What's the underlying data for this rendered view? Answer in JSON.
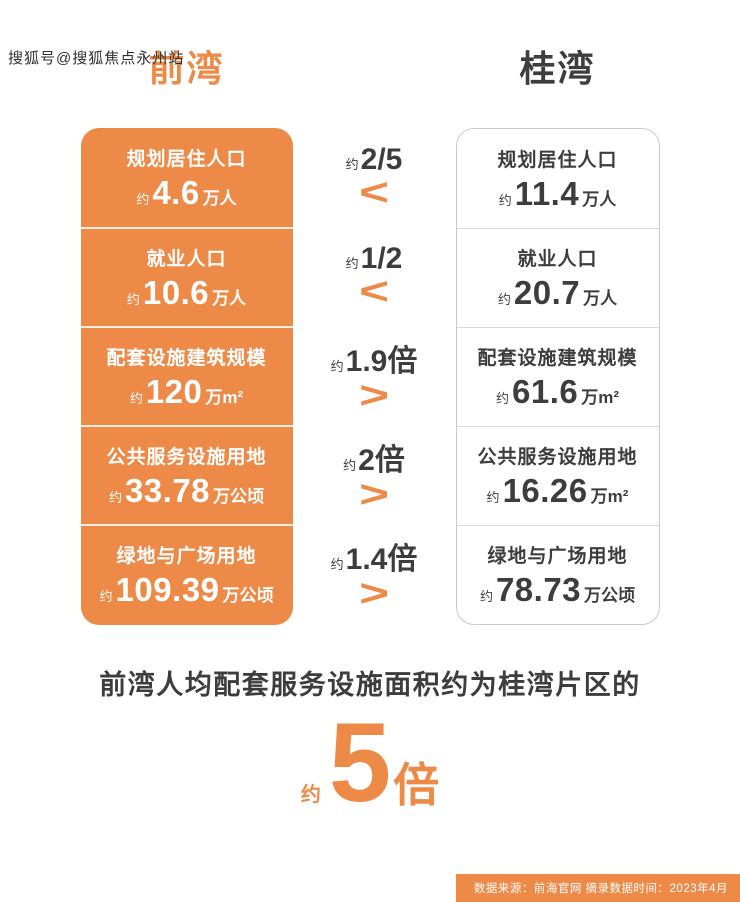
{
  "watermark": "搜狐号@搜狐焦点永州站",
  "header": {
    "left": "前湾",
    "right": "桂湾"
  },
  "rows": [
    {
      "left": {
        "label": "规划居住人口",
        "approx": "约",
        "value": "4.6",
        "unit": "万人"
      },
      "ratio": {
        "approx": "约",
        "value": "2/5",
        "symbol": "<"
      },
      "right": {
        "label": "规划居住人口",
        "approx": "约",
        "value": "11.4",
        "unit": "万人"
      }
    },
    {
      "left": {
        "label": "就业人口",
        "approx": "约",
        "value": "10.6",
        "unit": "万人"
      },
      "ratio": {
        "approx": "约",
        "value": "1/2",
        "symbol": "<"
      },
      "right": {
        "label": "就业人口",
        "approx": "约",
        "value": "20.7",
        "unit": "万人"
      }
    },
    {
      "left": {
        "label": "配套设施建筑规模",
        "approx": "约",
        "value": "120",
        "unit": "万m²"
      },
      "ratio": {
        "approx": "约",
        "value": "1.9倍",
        "symbol": ">"
      },
      "right": {
        "label": "配套设施建筑规模",
        "approx": "约",
        "value": "61.6",
        "unit": "万m²"
      }
    },
    {
      "left": {
        "label": "公共服务设施用地",
        "approx": "约",
        "value": "33.78",
        "unit": "万公顷"
      },
      "ratio": {
        "approx": "约",
        "value": "2倍",
        "symbol": ">"
      },
      "right": {
        "label": "公共服务设施用地",
        "approx": "约",
        "value": "16.26",
        "unit": "万m²"
      }
    },
    {
      "left": {
        "label": "绿地与广场用地",
        "approx": "约",
        "value": "109.39",
        "unit": "万公顷"
      },
      "ratio": {
        "approx": "约",
        "value": "1.4倍",
        "symbol": ">"
      },
      "right": {
        "label": "绿地与广场用地",
        "approx": "约",
        "value": "78.73",
        "unit": "万公顷"
      }
    }
  ],
  "summary": {
    "text": "前湾人均配套服务设施面积约为桂湾片区的",
    "approx": "约",
    "value": "5",
    "unit": "倍"
  },
  "footer": {
    "text": "数据来源：前海官网 摘录数据时间：2023年4月"
  },
  "colors": {
    "accent": "#ED8A47",
    "text": "#3D3D3D",
    "border": "#C9C9C9"
  },
  "chart_data": {
    "type": "table",
    "title": "前湾 vs 桂湾",
    "categories": [
      "规划居住人口",
      "就业人口",
      "配套设施建筑规模",
      "公共服务设施用地",
      "绿地与广场用地"
    ],
    "series": [
      {
        "name": "前湾",
        "values": [
          4.6,
          10.6,
          120,
          33.78,
          109.39
        ],
        "units": [
          "万人",
          "万人",
          "万m²",
          "万公顷",
          "万公顷"
        ]
      },
      {
        "name": "桂湾",
        "values": [
          11.4,
          20.7,
          61.6,
          16.26,
          78.73
        ],
        "units": [
          "万人",
          "万人",
          "万m²",
          "万m²",
          "万公顷"
        ]
      }
    ],
    "ratios": [
      "约2/5",
      "约1/2",
      "约1.9倍",
      "约2倍",
      "约1.4倍"
    ],
    "comparisons": [
      "<",
      "<",
      ">",
      ">",
      ">"
    ],
    "annotation": "前湾人均配套服务设施面积约为桂湾片区的约5倍",
    "source": "数据来源：前海官网 摘录数据时间：2023年4月"
  }
}
